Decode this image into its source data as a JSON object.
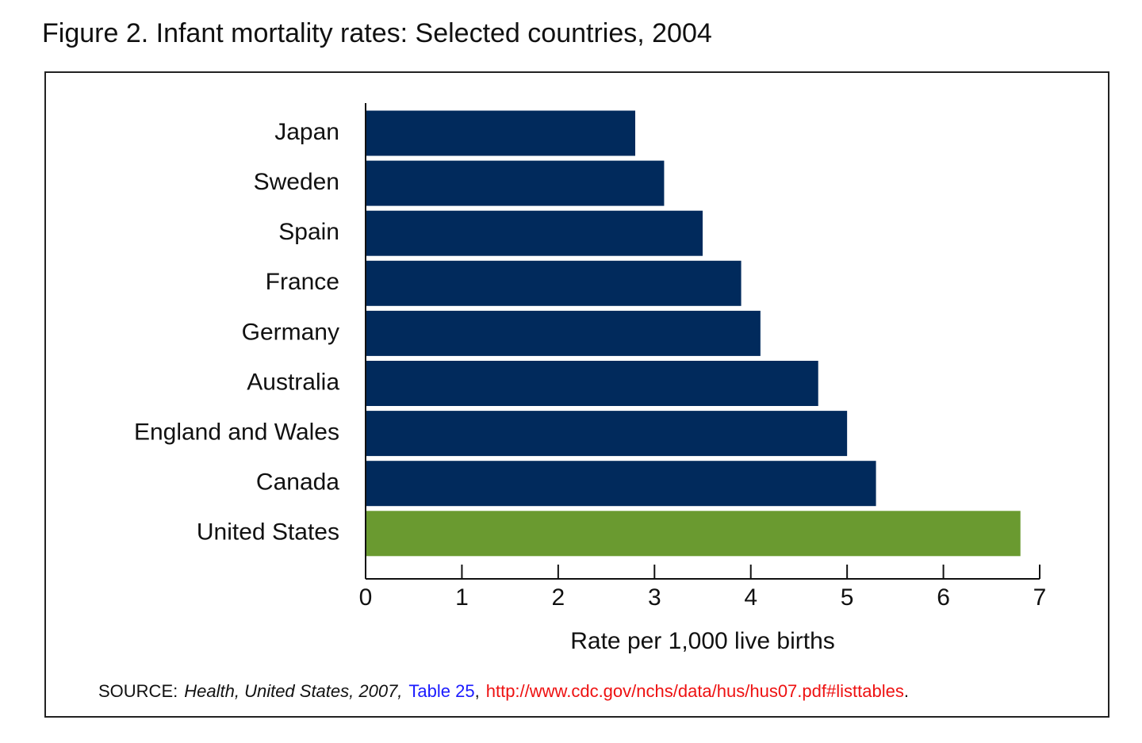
{
  "chart_data": {
    "type": "barh",
    "title": "Figure 2.  Infant mortality rates:  Selected countries, 2004",
    "categories": [
      "Japan",
      "Sweden",
      "Spain",
      "France",
      "Germany",
      "Australia",
      "England and Wales",
      "Canada",
      "United States"
    ],
    "values": [
      2.8,
      3.1,
      3.5,
      3.9,
      4.1,
      4.7,
      5.0,
      5.3,
      6.8
    ],
    "colors": [
      "#012a5c",
      "#012a5c",
      "#012a5c",
      "#012a5c",
      "#012a5c",
      "#012a5c",
      "#012a5c",
      "#012a5c",
      "#6a9a30"
    ],
    "xlabel": "Rate per 1,000 live births",
    "xlim": [
      0,
      7
    ],
    "xticks": [
      0,
      1,
      2,
      3,
      4,
      5,
      6,
      7
    ],
    "source": [
      {
        "text": "SOURCE:",
        "color": "#111111",
        "italic": false
      },
      {
        "text": "Health, United States, 2007,",
        "color": "#111111",
        "italic": true
      },
      {
        "text": "Table 25",
        "color": "#1a1aff",
        "italic": false
      },
      {
        "text": ",",
        "color": "#111111",
        "italic": false
      },
      {
        "text": "http://www.cdc.gov/nchs/data/hus/hus07.pdf#listtables",
        "color": "#ee1111",
        "italic": false
      },
      {
        "text": ".",
        "color": "#111111",
        "italic": false
      }
    ]
  }
}
